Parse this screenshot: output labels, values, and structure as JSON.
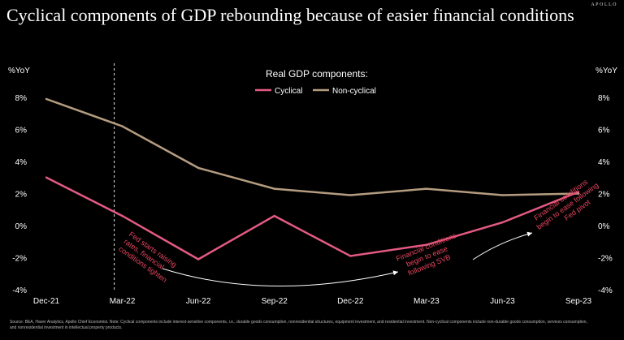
{
  "brand": "APOLLO",
  "colors": {
    "background": "#000000",
    "cyclical": "#e45a82",
    "non_cyclical": "#b49c80",
    "annotation": "#e8455f"
  },
  "footnote": "Source: BEA, Haver Analytics, Apollo Chief Economist. Note: Cyclical components include interest-sensitive components, i.e., durable goods consumption, nonresidential structures, equipment investment, and residential investment. Non-cyclical components include non-durable goods consumption, services consumption, and nonresidential investment in intellectual property products.",
  "chart_data": {
    "type": "line",
    "title": "Cyclical components of GDP rebounding because of easier financial conditions",
    "ylabel_left": "%YoY",
    "ylabel_right": "%YoY",
    "legend_title": "Real GDP components:",
    "categories": [
      "Dec-21",
      "Mar-22",
      "Jun-22",
      "Sep-22",
      "Dec-22",
      "Mar-23",
      "Jun-23",
      "Sep-23"
    ],
    "y_ticks": [
      "8%",
      "6%",
      "4%",
      "2%",
      "0%",
      "-2%",
      "-4%"
    ],
    "ylim": [
      -4,
      8
    ],
    "series": [
      {
        "name": "Cyclical",
        "values": [
          3.0,
          0.6,
          -2.1,
          0.6,
          -1.9,
          -1.2,
          0.2,
          2.1
        ]
      },
      {
        "name": "Non-cyclical",
        "values": [
          7.9,
          6.2,
          3.6,
          2.3,
          1.9,
          2.3,
          1.9,
          2.0
        ]
      }
    ],
    "event_line_at": "Mar-22",
    "annotations": [
      {
        "id": "fed",
        "lines": [
          "Fed starts raising",
          "rates, financial",
          "conditions tighten"
        ]
      },
      {
        "id": "svb",
        "lines": [
          "Financial conditions",
          "begin to ease",
          "following SVB"
        ]
      },
      {
        "id": "pivot",
        "lines": [
          "Financial conditions",
          "begin to ease following",
          "Fed pivot"
        ]
      }
    ]
  }
}
